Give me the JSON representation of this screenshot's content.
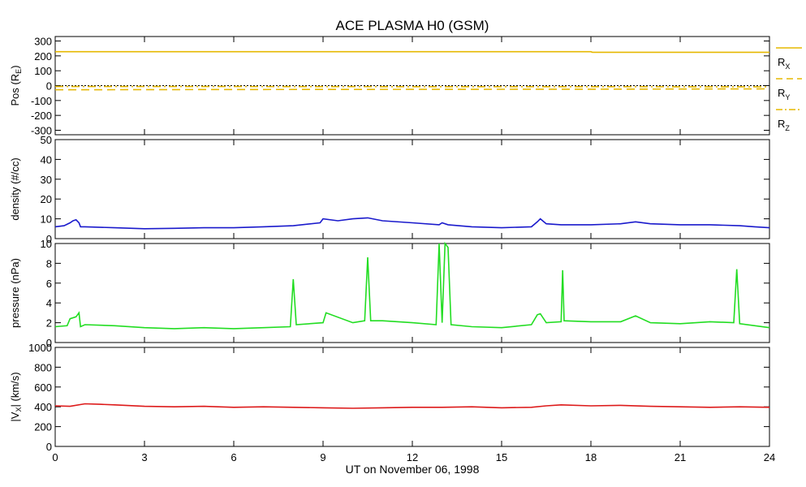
{
  "chart_data": {
    "type": "line",
    "title": "ACE PLASMA H0 (GSM)",
    "xlabel": "UT on November 06, 1998",
    "x_ticks": [
      0,
      3,
      6,
      9,
      12,
      15,
      18,
      21,
      24
    ],
    "xlim": [
      0,
      24
    ],
    "x_tick_labels": [
      "0",
      "3",
      "6",
      "9",
      "12",
      "15",
      "18",
      "21",
      "24"
    ],
    "panels": [
      {
        "id": "pos",
        "ylabel": "Pos (R",
        "ylabel_sub": "E",
        "ylabel_end": ")",
        "ylim": [
          -330,
          330
        ],
        "y_ticks": [
          -300,
          -200,
          -100,
          0,
          100,
          200,
          300
        ],
        "y_tick_labels": [
          "-300",
          "-200",
          "-100",
          "0",
          "100",
          "200",
          "300"
        ],
        "zero_line": true,
        "series": [
          {
            "name": "R",
            "sub": "X",
            "color": "#e6b800",
            "style": "solid",
            "x": [
              0,
              18,
              18.05,
              24
            ],
            "y": [
              228,
              228,
              224,
              224
            ]
          },
          {
            "name": "R",
            "sub": "Y",
            "color": "#e6b800",
            "style": "dashed",
            "x": [
              0,
              6,
              12,
              18,
              24
            ],
            "y": [
              -28,
              -26,
              -25,
              -24,
              -22
            ]
          },
          {
            "name": "R",
            "sub": "Z",
            "color": "#e6b800",
            "style": "dashdot",
            "x": [
              0,
              6,
              12,
              18,
              24
            ],
            "y": [
              -6,
              -6,
              -7,
              -7,
              -8
            ]
          }
        ]
      },
      {
        "id": "density",
        "ylabel": "density (#/cc)",
        "ylim": [
          0,
          50
        ],
        "y_ticks": [
          0,
          10,
          20,
          30,
          40,
          50
        ],
        "y_tick_labels": [
          "0",
          "10",
          "20",
          "30",
          "40",
          "50"
        ],
        "series": [
          {
            "color": "#1a1acc",
            "x": [
              0,
              0.3,
              0.5,
              0.6,
              0.7,
              0.8,
              0.85,
              1.0,
              2.0,
              3.0,
              4.0,
              5.0,
              6.0,
              7.0,
              8.0,
              8.9,
              9.0,
              9.5,
              10.0,
              10.5,
              11.0,
              12.0,
              12.9,
              13.0,
              13.2,
              14.0,
              15.0,
              16.0,
              16.2,
              16.3,
              16.5,
              17.0,
              18.0,
              19.0,
              19.5,
              20.0,
              21.0,
              22.0,
              23.0,
              23.5,
              24
            ],
            "y": [
              6.0,
              6.5,
              8.0,
              9.0,
              9.5,
              8.0,
              6.0,
              6.0,
              5.5,
              5.0,
              5.2,
              5.5,
              5.5,
              6.0,
              6.5,
              8.0,
              10.0,
              9.0,
              10.0,
              10.5,
              9.0,
              8.0,
              7.0,
              8.0,
              7.0,
              6.0,
              5.5,
              6.0,
              8.5,
              10.0,
              7.5,
              7.0,
              7.0,
              7.5,
              8.5,
              7.5,
              7.0,
              7.0,
              6.5,
              6.0,
              5.5
            ]
          }
        ]
      },
      {
        "id": "pressure",
        "ylabel": "pressure (nPa)",
        "ylim": [
          0,
          10
        ],
        "y_ticks": [
          0,
          2,
          4,
          6,
          8,
          10
        ],
        "y_tick_labels": [
          "0",
          "2",
          "4",
          "6",
          "8",
          "10"
        ],
        "series": [
          {
            "color": "#22dd22",
            "x": [
              0,
              0.4,
              0.5,
              0.7,
              0.8,
              0.85,
              1.0,
              2.0,
              3.0,
              4.0,
              5.0,
              6.0,
              7.0,
              7.9,
              8.0,
              8.1,
              9.0,
              9.1,
              10.0,
              10.4,
              10.5,
              10.6,
              11.0,
              12.0,
              12.8,
              12.9,
              13.0,
              13.1,
              13.2,
              13.3,
              14.0,
              15.0,
              16.0,
              16.2,
              16.3,
              16.5,
              17.0,
              17.05,
              17.1,
              18.0,
              19.0,
              19.5,
              20.0,
              21.0,
              22.0,
              22.8,
              22.9,
              23.0,
              24
            ],
            "y": [
              1.6,
              1.7,
              2.4,
              2.6,
              3.0,
              1.6,
              1.8,
              1.7,
              1.5,
              1.4,
              1.5,
              1.4,
              1.5,
              1.6,
              6.4,
              1.8,
              2.0,
              3.0,
              2.0,
              2.2,
              8.6,
              2.2,
              2.2,
              2.0,
              1.8,
              10.0,
              2.0,
              10.0,
              9.6,
              1.8,
              1.6,
              1.5,
              1.8,
              2.8,
              2.9,
              2.0,
              2.1,
              7.3,
              2.2,
              2.1,
              2.1,
              2.7,
              2.0,
              1.9,
              2.1,
              2.0,
              7.4,
              1.9,
              1.5
            ]
          }
        ]
      },
      {
        "id": "vx",
        "ylabel": "|V",
        "ylabel_sub": "X",
        "ylabel_end": "| (km/s)",
        "ylim": [
          0,
          1000
        ],
        "y_ticks": [
          0,
          200,
          400,
          600,
          800,
          1000
        ],
        "y_tick_labels": [
          "0",
          "200",
          "400",
          "600",
          "800",
          "1000"
        ],
        "series": [
          {
            "color": "#dd1a1a",
            "x": [
              0,
              0.5,
              1.0,
              1.5,
              2.0,
              3.0,
              4.0,
              5.0,
              6.0,
              7.0,
              8.0,
              9.0,
              10.0,
              11.0,
              12.0,
              13.0,
              14.0,
              15.0,
              16.0,
              16.5,
              17.0,
              18.0,
              19.0,
              20.0,
              21.0,
              22.0,
              23.0,
              24
            ],
            "y": [
              410,
              405,
              430,
              425,
              420,
              405,
              400,
              405,
              395,
              400,
              395,
              390,
              385,
              390,
              395,
              395,
              400,
              390,
              395,
              410,
              420,
              410,
              415,
              405,
              400,
              395,
              400,
              395
            ]
          }
        ]
      }
    ]
  }
}
